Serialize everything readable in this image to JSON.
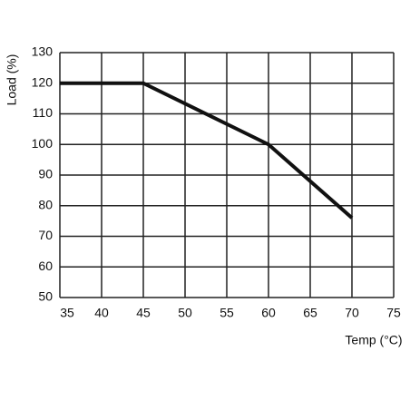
{
  "chart_data": {
    "type": "line",
    "x_label": "Temp (°C)",
    "y_label": "Load (%)",
    "x": [
      35,
      45,
      60,
      70
    ],
    "series": [
      {
        "color": "#111111",
        "values": [
          120,
          120,
          100,
          76
        ]
      }
    ],
    "xlim": [
      35,
      75
    ],
    "xticks": [
      35,
      40,
      45,
      50,
      55,
      60,
      65,
      70,
      75
    ],
    "ylim": [
      50,
      130
    ],
    "yticks": [
      50,
      60,
      70,
      80,
      90,
      100,
      110,
      120,
      130
    ],
    "grid": true
  }
}
